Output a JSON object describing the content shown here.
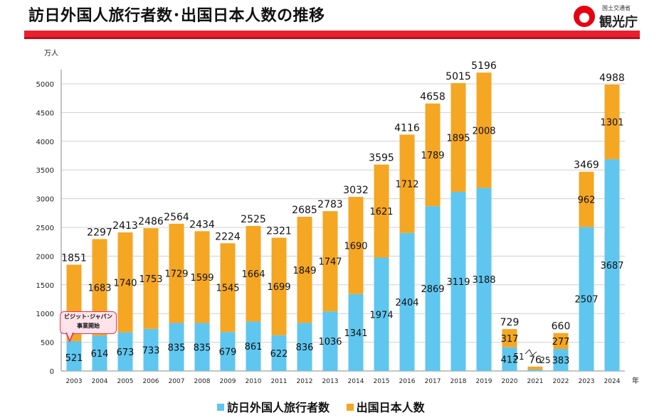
{
  "header": {
    "title": "訪日外国人旅行者数･出国日本人数の推移",
    "logo_sub": "国土交通省",
    "logo_main": "観光庁"
  },
  "colors": {
    "inbound": "#5fc6ef",
    "outbound": "#f5a623",
    "accent": "#ea1f2d"
  },
  "callout": {
    "line1": "ビジット･ジャパン",
    "line2": "事業開始"
  },
  "chart_data": {
    "type": "bar",
    "stacked": true,
    "ylabel": "万人",
    "xlabel": "年",
    "ylim": [
      0,
      5000
    ],
    "yticks": [
      0,
      500,
      1000,
      1500,
      2000,
      2500,
      3000,
      3500,
      4000,
      4500,
      5000
    ],
    "categories": [
      "2003",
      "2004",
      "2005",
      "2006",
      "2007",
      "2008",
      "2009",
      "2010",
      "2011",
      "2012",
      "2013",
      "2014",
      "2015",
      "2016",
      "2017",
      "2018",
      "2019",
      "2020",
      "2021",
      "2022",
      "2023",
      "2024"
    ],
    "series": [
      {
        "name": "訪日外国人旅行者数",
        "color": "#5fc6ef",
        "values": [
          521,
          614,
          673,
          733,
          835,
          835,
          679,
          861,
          622,
          836,
          1036,
          1341,
          1974,
          2404,
          2869,
          3119,
          3188,
          412,
          25,
          383,
          2507,
          3687
        ]
      },
      {
        "name": "出国日本人数",
        "color": "#f5a623",
        "values": [
          1330,
          1683,
          1740,
          1753,
          1729,
          1599,
          1545,
          1664,
          1699,
          1849,
          1747,
          1690,
          1621,
          1712,
          1789,
          1895,
          2008,
          317,
          51,
          277,
          962,
          1301
        ]
      }
    ],
    "totals": [
      1851,
      2297,
      2413,
      2486,
      2564,
      2434,
      2224,
      2525,
      2321,
      2685,
      2783,
      3032,
      3595,
      4116,
      4658,
      5015,
      5196,
      729,
      76,
      660,
      3469,
      4988
    ]
  }
}
